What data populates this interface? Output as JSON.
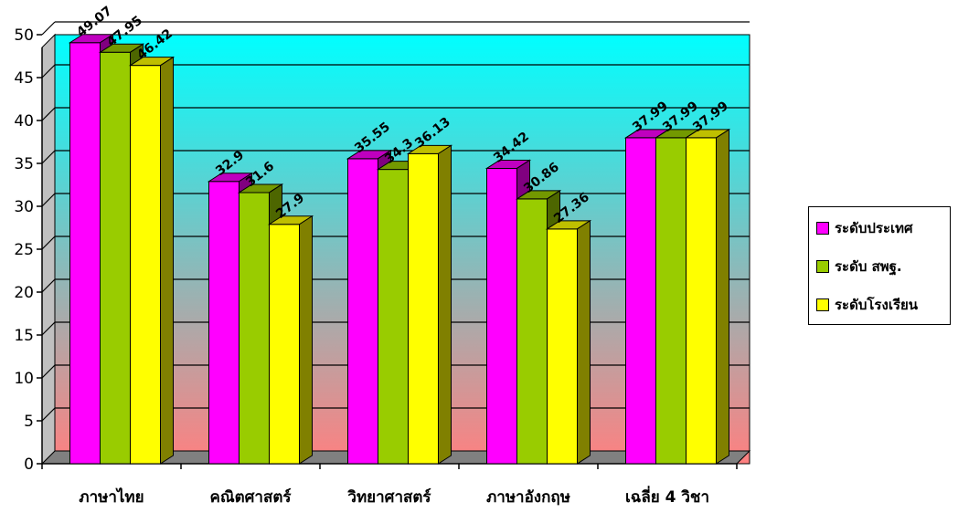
{
  "chart_data": {
    "type": "bar",
    "categories": [
      "ภาษาไทย",
      "คณิตศาสตร์",
      "วิทยาศาสตร์",
      "ภาษาอังกฤษ",
      "เฉลี่ย 4 วิชา"
    ],
    "series": [
      {
        "name": "ระดับประเทศ",
        "values": [
          49.07,
          32.9,
          35.55,
          34.42,
          37.99
        ],
        "labels": [
          "49.07",
          "32.9",
          "35.55",
          "34.42",
          "37.99"
        ],
        "color": "#ff00ff"
      },
      {
        "name": "ระดับ สพฐ.",
        "values": [
          47.95,
          31.6,
          34.3,
          30.86,
          37.99
        ],
        "labels": [
          "47.95",
          "31.6",
          "34.3",
          "30.86",
          "37.99"
        ],
        "color": "#99cc00"
      },
      {
        "name": "ระดับโรงเรียน",
        "values": [
          46.42,
          27.9,
          36.13,
          27.36,
          37.99
        ],
        "labels": [
          "46.42",
          "27.9",
          "36.13",
          "27.36",
          "37.99"
        ],
        "color": "#ffff00"
      }
    ],
    "y_ticks": [
      "0",
      "5",
      "10",
      "15",
      "20",
      "25",
      "30",
      "35",
      "40",
      "45",
      "50"
    ],
    "ylim": [
      0,
      50
    ],
    "grid": true,
    "legend_position": "right",
    "background_gradient": [
      "#00ffff",
      "#ff8080"
    ],
    "three_d": true
  }
}
